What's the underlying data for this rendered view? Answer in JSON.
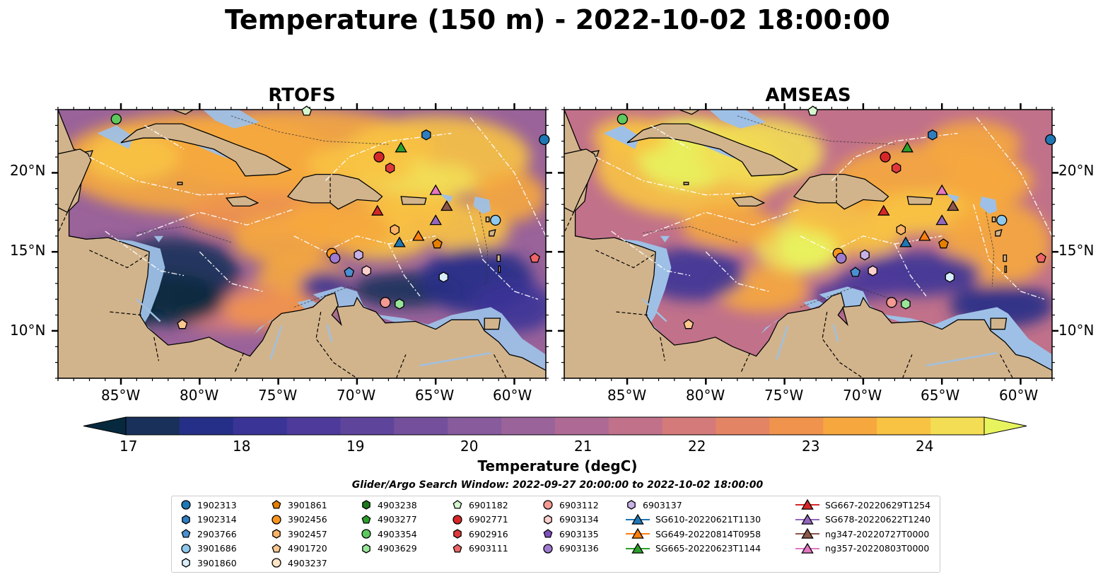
{
  "title": "Temperature (150 m) - 2022-10-02 18:00:00",
  "panels": [
    {
      "title": "RTOFS",
      "scheme": "rtofs"
    },
    {
      "title": "AMSEAS",
      "scheme": "amseas"
    }
  ],
  "lat_ticks": [
    "20°N",
    "15°N",
    "10°N"
  ],
  "lon_ticks": [
    "85°W",
    "80°W",
    "75°W",
    "70°W",
    "65°W",
    "60°W"
  ],
  "colorbar": {
    "label": "Temperature (degC)",
    "ticks": [
      "17",
      "18",
      "19",
      "20",
      "21",
      "22",
      "23",
      "24"
    ],
    "min": 16.75,
    "max": 24.75,
    "step": 0.5,
    "colors": [
      "#06293d",
      "#18305a",
      "#262f87",
      "#3a3497",
      "#4d3a9a",
      "#5f449b",
      "#74509c",
      "#875b9c",
      "#9a639a",
      "#ae6a94",
      "#c1718a",
      "#d47a7a",
      "#e38564",
      "#f0934c",
      "#f6a83e",
      "#f8c342",
      "#f2dd54",
      "#e8f45e"
    ]
  },
  "search_window": "Glider/Argo Search Window: 2022-09-27 20:00:00 to 2022-10-02 18:00:00",
  "map_bounds": {
    "lon": [
      -89,
      -58
    ],
    "lat": [
      7,
      24
    ]
  },
  "legend": [
    {
      "label": "1902313",
      "marker": "circle",
      "color": "#1f77b4"
    },
    {
      "label": "1902314",
      "marker": "hexagon",
      "color": "#2f7ec2"
    },
    {
      "label": "2903766",
      "marker": "pentagon",
      "color": "#4a90d0"
    },
    {
      "label": "3901686",
      "marker": "circle",
      "color": "#8ec8ec"
    },
    {
      "label": "3901860",
      "marker": "hexagon",
      "color": "#d8eefb"
    },
    {
      "label": "3901861",
      "marker": "pentagon",
      "color": "#e67e00"
    },
    {
      "label": "3902456",
      "marker": "circle",
      "color": "#f7951f"
    },
    {
      "label": "3902457",
      "marker": "hexagon",
      "color": "#fbb365"
    },
    {
      "label": "4901720",
      "marker": "pentagon",
      "color": "#fcc88f"
    },
    {
      "label": "4903237",
      "marker": "circle",
      "color": "#fde5c6"
    },
    {
      "label": "4903238",
      "marker": "hexagon",
      "color": "#1c7a1c"
    },
    {
      "label": "4903277",
      "marker": "pentagon",
      "color": "#2ca02c"
    },
    {
      "label": "4903354",
      "marker": "circle",
      "color": "#5dc85d"
    },
    {
      "label": "4903629",
      "marker": "hexagon",
      "color": "#98e698"
    },
    {
      "label": "6901182",
      "marker": "pentagon",
      "color": "#d4f7cf"
    },
    {
      "label": "6902771",
      "marker": "circle",
      "color": "#d62728"
    },
    {
      "label": "6902916",
      "marker": "hexagon",
      "color": "#e0393a"
    },
    {
      "label": "6903111",
      "marker": "pentagon",
      "color": "#ee6565"
    },
    {
      "label": "6903112",
      "marker": "circle",
      "color": "#f49a93"
    },
    {
      "label": "6903134",
      "marker": "hexagon",
      "color": "#fbd0cc"
    },
    {
      "label": "6903135",
      "marker": "pentagon",
      "color": "#7f4fbd"
    },
    {
      "label": "6903136",
      "marker": "circle",
      "color": "#9f7bd0"
    },
    {
      "label": "6903137",
      "marker": "hexagon",
      "color": "#c8b1e6"
    },
    {
      "label": "SG610-20220621T1130",
      "marker": "triangle-line",
      "color": "#1f77b4"
    },
    {
      "label": "SG649-20220814T0958",
      "marker": "triangle-line",
      "color": "#ff7f0e"
    },
    {
      "label": "SG665-20220623T1144",
      "marker": "triangle-line",
      "color": "#2ca02c"
    },
    {
      "label": "SG667-20220629T1254",
      "marker": "triangle-line",
      "color": "#d62728"
    },
    {
      "label": "SG678-20220622T1240",
      "marker": "triangle-line",
      "color": "#9467bd"
    },
    {
      "label": "ng347-20220727T0000",
      "marker": "triangle-line",
      "color": "#8c564b"
    },
    {
      "label": "ng357-20220803T0000",
      "marker": "triangle-line",
      "color": "#e377c2"
    }
  ],
  "platforms": [
    {
      "id": "4903354",
      "lon": -85.3,
      "lat": 23.4
    },
    {
      "id": "6901182",
      "lon": -73.2,
      "lat": 23.9
    },
    {
      "id": "1902314",
      "lon": -65.6,
      "lat": 22.4
    },
    {
      "id": "1902313",
      "lon": -58.1,
      "lat": 22.1
    },
    {
      "id": "SG665-20220623T1144",
      "lon": -67.2,
      "lat": 21.6
    },
    {
      "id": "6902771",
      "lon": -68.6,
      "lat": 21.0
    },
    {
      "id": "6902916",
      "lon": -67.9,
      "lat": 20.3
    },
    {
      "id": "ng357-20220803T0000",
      "lon": -65.0,
      "lat": 18.9
    },
    {
      "id": "ng347-20220727T0000",
      "lon": -64.3,
      "lat": 17.9
    },
    {
      "id": "SG667-20220629T1254",
      "lon": -68.7,
      "lat": 17.6
    },
    {
      "id": "SG678-20220622T1240",
      "lon": -65.0,
      "lat": 17.0
    },
    {
      "id": "3901686",
      "lon": -61.2,
      "lat": 17.0
    },
    {
      "id": "3902457",
      "lon": -67.6,
      "lat": 16.4
    },
    {
      "id": "SG649-20220814T0958",
      "lon": -66.1,
      "lat": 16.0
    },
    {
      "id": "SG610-20220621T1130",
      "lon": -67.3,
      "lat": 15.6
    },
    {
      "id": "3901861",
      "lon": -64.9,
      "lat": 15.5
    },
    {
      "id": "3902456",
      "lon": -71.6,
      "lat": 14.9
    },
    {
      "id": "6903137",
      "lon": -69.9,
      "lat": 14.8
    },
    {
      "id": "6903136",
      "lon": -71.4,
      "lat": 14.6
    },
    {
      "id": "6903111",
      "lon": -58.7,
      "lat": 14.6
    },
    {
      "id": "2903766",
      "lon": -70.5,
      "lat": 13.7
    },
    {
      "id": "6903134",
      "lon": -69.4,
      "lat": 13.8
    },
    {
      "id": "3901860",
      "lon": -64.5,
      "lat": 13.4
    },
    {
      "id": "6903112",
      "lon": -68.2,
      "lat": 11.8
    },
    {
      "id": "4903629",
      "lon": -67.3,
      "lat": 11.7
    },
    {
      "id": "4901720",
      "lon": -81.1,
      "lat": 10.4
    }
  ]
}
